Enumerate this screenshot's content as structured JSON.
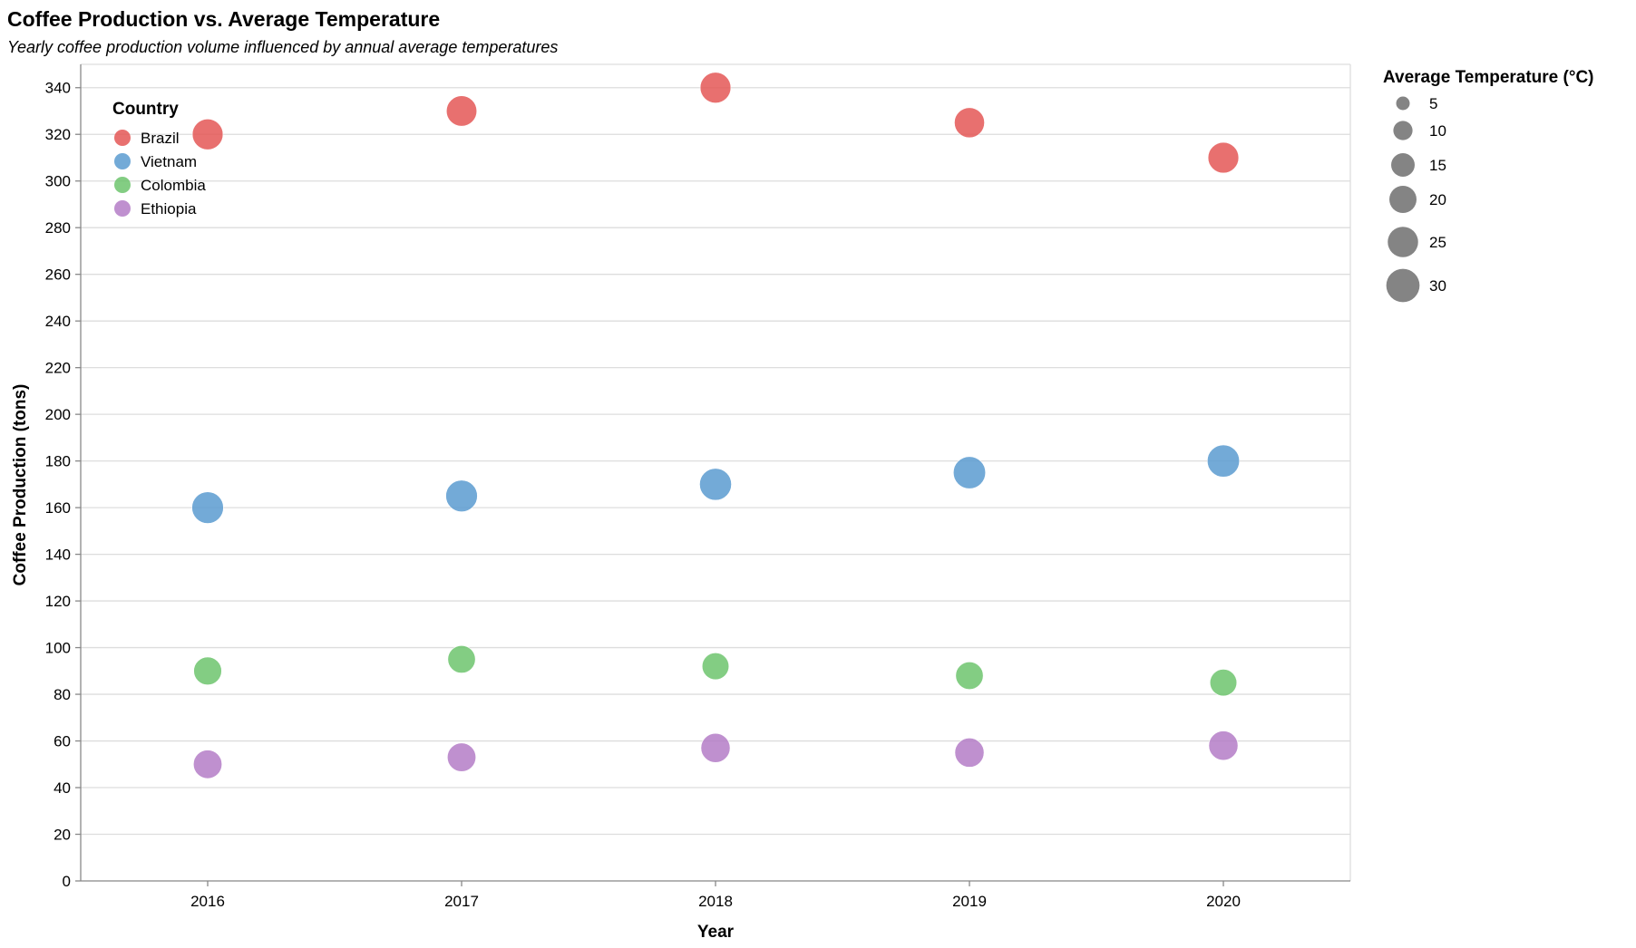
{
  "chart_data": {
    "type": "scatter",
    "title": "Coffee Production vs. Average Temperature",
    "subtitle": "Yearly coffee production volume influenced by annual average temperatures",
    "xlabel": "Year",
    "ylabel": "Coffee Production (tons)",
    "x_categories": [
      "2016",
      "2017",
      "2018",
      "2019",
      "2020"
    ],
    "ylim": [
      0,
      350
    ],
    "y_ticks": [
      0,
      20,
      40,
      60,
      80,
      100,
      120,
      140,
      160,
      180,
      200,
      220,
      240,
      260,
      280,
      300,
      320,
      340
    ],
    "grid": "horizontal",
    "color_legend": {
      "title": "Country",
      "placement": "top-left inside plot",
      "entries": [
        {
          "label": "Brazil",
          "color": "#e45756"
        },
        {
          "label": "Vietnam",
          "color": "#5b9bd0"
        },
        {
          "label": "Colombia",
          "color": "#6dc46d"
        },
        {
          "label": "Ethiopia",
          "color": "#b47cc7"
        }
      ]
    },
    "size_legend": {
      "title": "Average Temperature (°C)",
      "placement": "right",
      "values": [
        5,
        10,
        15,
        20,
        25,
        30
      ]
    },
    "series": [
      {
        "name": "Brazil",
        "x": [
          "2016",
          "2017",
          "2018",
          "2019",
          "2020"
        ],
        "y": [
          320,
          330,
          340,
          325,
          310
        ],
        "size": [
          25.5,
          25,
          25.5,
          24.5,
          25.5
        ]
      },
      {
        "name": "Vietnam",
        "x": [
          "2016",
          "2017",
          "2018",
          "2019",
          "2020"
        ],
        "y": [
          160,
          165,
          170,
          175,
          180
        ],
        "size": [
          27,
          27,
          27.5,
          28,
          28
        ]
      },
      {
        "name": "Colombia",
        "x": [
          "2016",
          "2017",
          "2018",
          "2019",
          "2020"
        ],
        "y": [
          90,
          95,
          92,
          88,
          85
        ],
        "size": [
          21,
          20.5,
          19.5,
          20.5,
          19.5
        ]
      },
      {
        "name": "Ethiopia",
        "x": [
          "2016",
          "2017",
          "2018",
          "2019",
          "2020"
        ],
        "y": [
          50,
          53,
          57,
          55,
          58
        ],
        "size": [
          22,
          22,
          23,
          23,
          23
        ]
      }
    ]
  }
}
